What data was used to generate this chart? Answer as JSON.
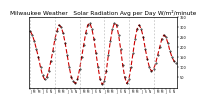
{
  "title": "Milwaukee Weather   Solar Radiation Avg per Day W/m²/minute",
  "title_fontsize": 4.2,
  "background_color": "#ffffff",
  "plot_bg_color": "#ffffff",
  "line_color": "#cc0000",
  "dot_color": "#000000",
  "grid_color": "#aaaaaa",
  "ylim": [
    0,
    350
  ],
  "yticks": [
    50,
    100,
    150,
    200,
    250,
    300,
    350
  ],
  "ytick_labels": [
    "50",
    "100",
    "150",
    "200",
    "250",
    "300",
    "350"
  ],
  "y_values": [
    280,
    260,
    230,
    190,
    150,
    100,
    60,
    40,
    50,
    80,
    130,
    180,
    240,
    280,
    310,
    300,
    270,
    220,
    160,
    100,
    50,
    30,
    20,
    40,
    90,
    150,
    210,
    270,
    310,
    320,
    290,
    240,
    170,
    100,
    40,
    15,
    30,
    80,
    160,
    230,
    290,
    320,
    310,
    260,
    190,
    110,
    50,
    20,
    40,
    100,
    170,
    240,
    290,
    310,
    290,
    250,
    190,
    140,
    100,
    80,
    90,
    120,
    160,
    200,
    240,
    260,
    250,
    220,
    180,
    150,
    130,
    120
  ],
  "x_labels_step": 2,
  "num_years": 6,
  "months_per_year": 12,
  "grid_x_positions": [
    0,
    12,
    24,
    36,
    48,
    60
  ]
}
